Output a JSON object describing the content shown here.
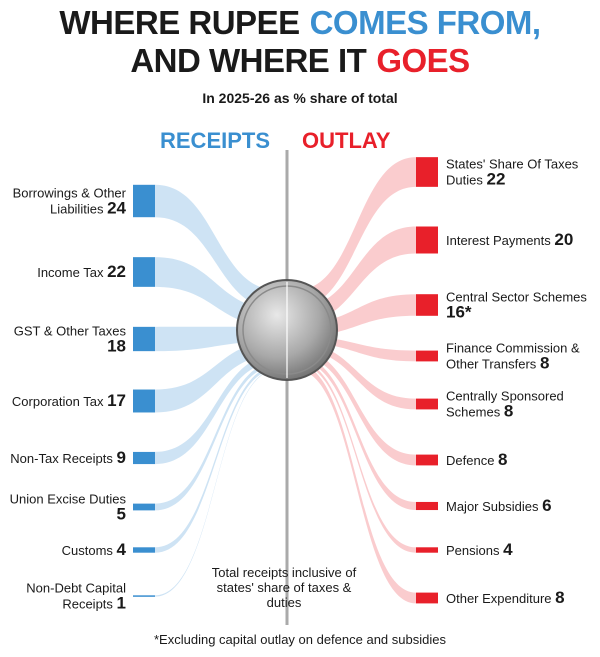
{
  "chart_data": {
    "type": "flow",
    "title": [
      [
        {
          "text": "WHERE RUPEE",
          "color": "#1a1a1a"
        },
        {
          "text": "COMES FROM,",
          "color": "#3a8fd0"
        }
      ],
      [
        {
          "text": "AND WHERE IT",
          "color": "#1a1a1a"
        },
        {
          "text": "GOES",
          "color": "#e8202a"
        }
      ]
    ],
    "subtitle": "In 2025-26 as % share of total",
    "receipts": {
      "name": "RECEIPTS",
      "color": "#3a8fd0",
      "flow_color": "#c6def2",
      "categories": [
        "Borrowings & Other Liabilities",
        "Income Tax",
        "GST & Other Taxes",
        "Corporation Tax",
        "Non-Tax Receipts",
        "Union Excise Duties",
        "Customs",
        "Non-Debt Capital Receipts"
      ],
      "values": [
        24,
        22,
        18,
        17,
        9,
        5,
        4,
        1
      ]
    },
    "outlay": {
      "name": "OUTLAY",
      "color": "#e8202a",
      "flow_color": "#f9c3c6",
      "categories": [
        "States' Share Of Taxes Duties",
        "Interest Payments",
        "Central Sector Schemes",
        "Finance Commission & Other Transfers",
        "Centrally Sponsored Schemes",
        "Defence",
        "Major Subsidies",
        "Pensions",
        "Other Expenditure"
      ],
      "values": [
        22,
        20,
        16,
        8,
        8,
        8,
        6,
        4,
        8
      ],
      "value_labels": [
        "22",
        "20",
        "16*",
        "8",
        "8",
        "8",
        "6",
        "4",
        "8"
      ]
    },
    "note": "Total receipts inclusive of states' share of taxes & duties",
    "footnote": "*Excluding capital outlay on defence and subsidies"
  }
}
